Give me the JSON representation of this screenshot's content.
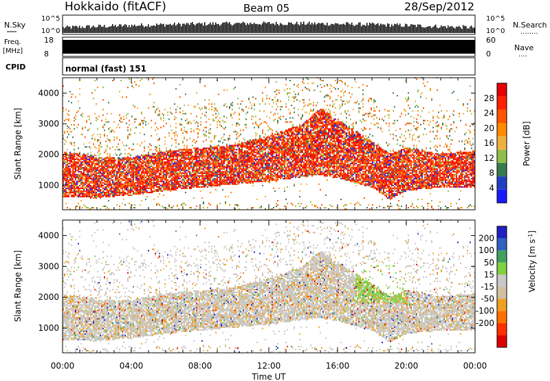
{
  "header": {
    "station": "Hokkaido (fitACF)",
    "beam": "Beam 05",
    "date": "28/Sep/2012"
  },
  "strips": {
    "nsky_label": "N.Sky",
    "nsky_ticks": [
      "10^5",
      "10^0"
    ],
    "nsearch_label": "N.Search",
    "nsearch_dots": "........",
    "freq_label": "Freq.",
    "freq_unit": "[MHz]",
    "freq_ticks": [
      "18",
      "8"
    ],
    "nave_label": "Nave",
    "nave_dots": "....",
    "nave_ticks": [
      "60",
      "0"
    ],
    "cpid_label": "CPID",
    "cpid_value": "normal (fast) 151"
  },
  "colors": {
    "power": [
      "#1a1aff",
      "#2040c0",
      "#3a7a50",
      "#8fbf4a",
      "#f0b040",
      "#ff8c00",
      "#ff5500",
      "#ff2000",
      "#e60000"
    ],
    "velocity": [
      "#2020c0",
      "#3060c0",
      "#40a060",
      "#80d040",
      "#c8c8c8",
      "#d0c0a0",
      "#f0a020",
      "#ff7000",
      "#ff3000",
      "#e00000"
    ]
  },
  "chart_data": [
    {
      "type": "heatmap",
      "title": "Power",
      "ylabel": "Slant Range [km]",
      "xlabel": "",
      "x_ticks": [
        "00:00",
        "04:00",
        "08:00",
        "12:00",
        "16:00",
        "20:00",
        "00:00"
      ],
      "y_ticks": [
        "1000",
        "2000",
        "3000",
        "4000"
      ],
      "ylim": [
        200,
        4500
      ],
      "xlim_hours": [
        0,
        24
      ],
      "colorbar": {
        "label": "Power [dB]",
        "ticks": [
          "4",
          "8",
          "12",
          "16",
          "20",
          "24",
          "28"
        ],
        "range": [
          0,
          32
        ]
      },
      "band": {
        "hours": [
          0,
          2,
          4,
          6,
          8,
          10,
          12,
          14,
          15,
          16,
          18,
          19,
          20,
          22,
          24
        ],
        "lower_km": [
          600,
          550,
          650,
          800,
          900,
          1000,
          1100,
          1250,
          1300,
          1200,
          900,
          500,
          800,
          900,
          900
        ],
        "upper_km": [
          2100,
          1900,
          1900,
          2100,
          2200,
          2300,
          2600,
          3000,
          3500,
          3100,
          2400,
          2000,
          2200,
          2000,
          2100
        ]
      }
    },
    {
      "type": "heatmap",
      "title": "Velocity",
      "ylabel": "Slant Range [km]",
      "xlabel": "Time UT",
      "x_ticks": [
        "00:00",
        "04:00",
        "08:00",
        "12:00",
        "16:00",
        "20:00",
        "00:00"
      ],
      "y_ticks": [
        "1000",
        "2000",
        "3000",
        "4000"
      ],
      "ylim": [
        200,
        4500
      ],
      "xlim_hours": [
        0,
        24
      ],
      "colorbar": {
        "label": "Velocity [m s^-1]",
        "ticks": [
          "200",
          "100",
          "50",
          "15",
          "-15",
          "-50",
          "-100",
          "-200"
        ],
        "range": [
          -250,
          250
        ]
      }
    }
  ]
}
